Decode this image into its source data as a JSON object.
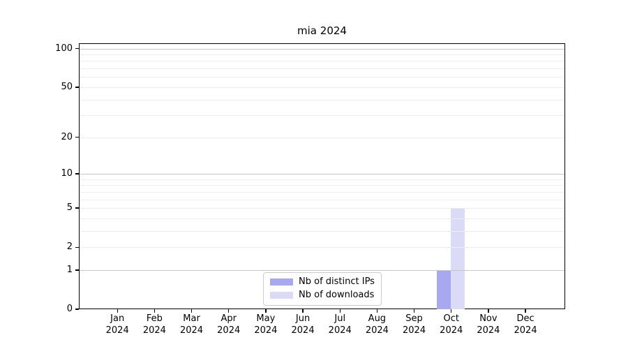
{
  "chart_data": {
    "type": "bar",
    "title": "mia 2024",
    "categories": [
      "Jan",
      "Feb",
      "Mar",
      "Apr",
      "May",
      "Jun",
      "Jul",
      "Aug",
      "Sep",
      "Oct",
      "Nov",
      "Dec"
    ],
    "category_year": "2024",
    "series": [
      {
        "name": "Nb of distinct IPs",
        "color": "#a8a8f0",
        "values": [
          0,
          0,
          0,
          0,
          0,
          0,
          0,
          0,
          0,
          1,
          0,
          0
        ]
      },
      {
        "name": "Nb of downloads",
        "color": "#dbdbf8",
        "values": [
          0,
          0,
          0,
          0,
          0,
          0,
          0,
          0,
          0,
          5,
          0,
          0
        ]
      }
    ],
    "xlabel": "",
    "ylabel": "",
    "yscale": "log1p",
    "ylim": [
      0,
      110
    ],
    "y_ticks": [
      0,
      1,
      2,
      5,
      10,
      20,
      50,
      100
    ],
    "y_minor_ticks": [
      3,
      4,
      6,
      7,
      8,
      9,
      30,
      40,
      60,
      70,
      80,
      90
    ],
    "y_decade_ticks": [
      1,
      10,
      100
    ],
    "grid": true,
    "legend_position": "lower center",
    "colors": {
      "grid_decade": "#c6c6c6",
      "grid_minor": "#ededed",
      "axis": "#000000",
      "legend_border": "#cccccc",
      "background": "#ffffff"
    }
  }
}
